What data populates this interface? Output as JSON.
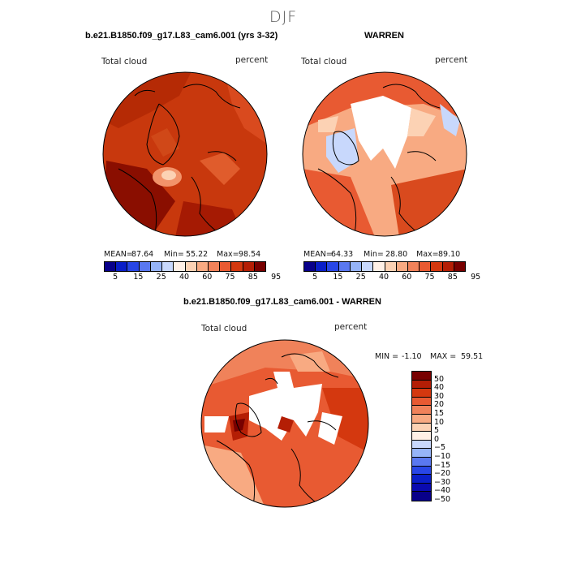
{
  "season": "DJF",
  "panel1": {
    "title": "b.e21.B1850.f09_g17.L83_cam6.001 (yrs 3-32)",
    "variable": "Total cloud",
    "units": "percent",
    "stats": {
      "mean_label": "MEAN=",
      "mean": "87.64",
      "min_label": "Min=",
      "min": "55.22",
      "max_label": "Max=",
      "max": "98.54"
    }
  },
  "panel2": {
    "title": "WARREN",
    "variable": "Total cloud",
    "units": "percent",
    "stats": {
      "mean_label": "MEAN=",
      "mean": "64.33",
      "min_label": "Min=",
      "min": "28.80",
      "max_label": "Max=",
      "max": "89.10"
    }
  },
  "panel3": {
    "title": "b.e21.B1850.f09_g17.L83_cam6.001 - WARREN",
    "variable": "Total cloud",
    "units": "percent",
    "min_label": "MIN =",
    "min": "-1.10",
    "max_label": "MAX =",
    "max": "59.51"
  },
  "colorbar_abs": {
    "ticks": [
      "5",
      "15",
      "25",
      "40",
      "60",
      "75",
      "85",
      "95"
    ],
    "colors": [
      "#08008a",
      "#0a1ec8",
      "#2846e6",
      "#5a78f0",
      "#96b4f8",
      "#c8d8fc",
      "#fff0e6",
      "#fcd2b4",
      "#f8aa82",
      "#f0825a",
      "#e85a32",
      "#d4380f",
      "#b41e05",
      "#780000"
    ]
  },
  "colorbar_diff": {
    "ticks": [
      "50",
      "40",
      "30",
      "20",
      "15",
      "10",
      "5",
      "0",
      "−5",
      "−10",
      "−15",
      "−20",
      "−30",
      "−40",
      "−50"
    ],
    "colors": [
      "#780000",
      "#b41e05",
      "#d4380f",
      "#e85a32",
      "#f0825a",
      "#f8aa82",
      "#fcd2b4",
      "#fff0e6",
      "#c8d8fc",
      "#96b4f8",
      "#5a78f0",
      "#2846e6",
      "#0a1ec8",
      "#0a0ab0",
      "#08008a"
    ]
  },
  "colors": {
    "red_dark": "#b52a05",
    "red_mid": "#d94a1e",
    "red_light": "#f2936a",
    "pale": "#fcd2b4",
    "blue_light": "#c8d8fc",
    "blue_mid": "#96b4f8"
  }
}
